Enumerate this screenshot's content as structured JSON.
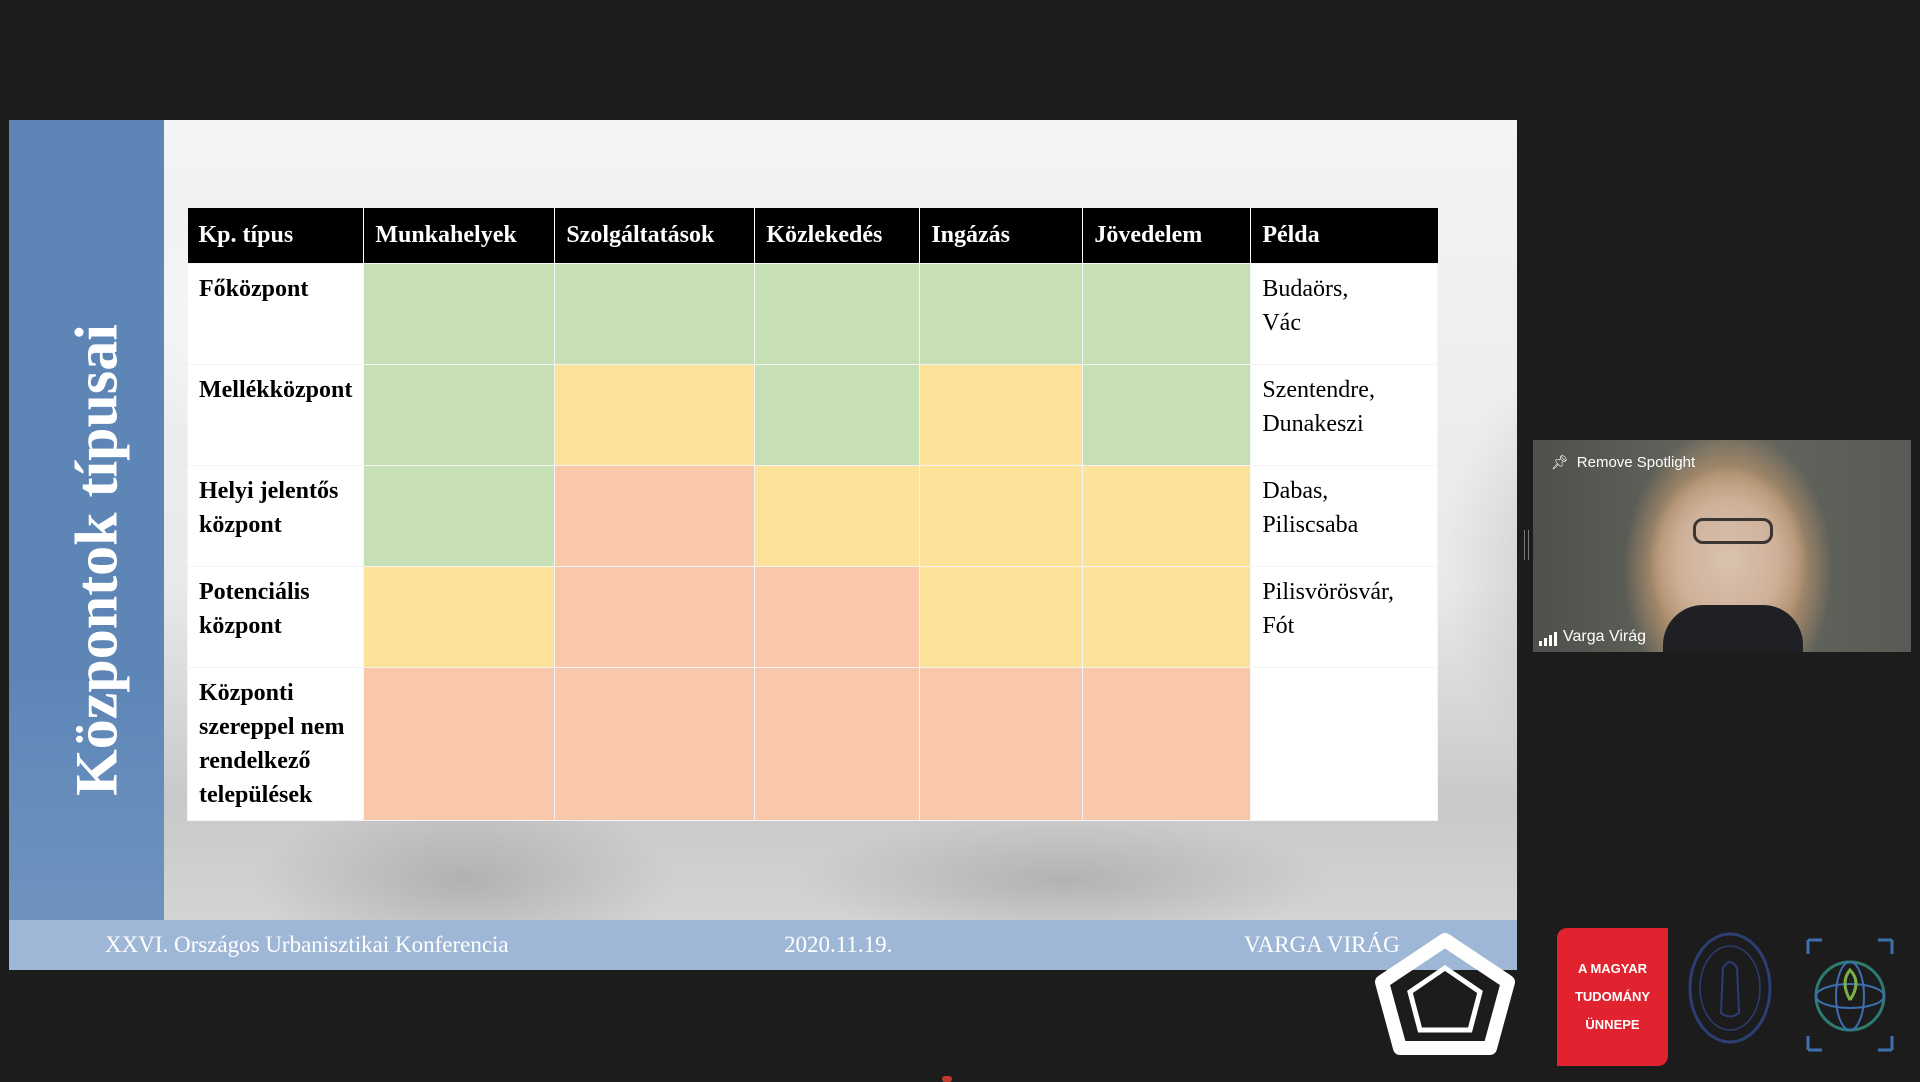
{
  "slide": {
    "title": "Központok típusai",
    "footer": {
      "conference": "XXVI. Országos Urbanisztikai Konferencia",
      "date": "2020.11.19.",
      "author": "VARGA VIRÁG"
    }
  },
  "table": {
    "headers": [
      "Kp. típus",
      "Munkahelyek",
      "Szolgáltatások",
      "Közlekedés",
      "Ingázás",
      "Jövedelem",
      "Példa"
    ],
    "rows": [
      {
        "name": [
          "Főközpont"
        ],
        "cells": [
          "green",
          "green",
          "green",
          "green",
          "green"
        ],
        "example": [
          "Budaörs,",
          "Vác"
        ]
      },
      {
        "name": [
          "Mellékközpont"
        ],
        "cells": [
          "green",
          "yellow",
          "green",
          "yellow",
          "green"
        ],
        "example": [
          "Szentendre,",
          "Dunakeszi"
        ]
      },
      {
        "name": [
          "Helyi jelentős",
          "központ"
        ],
        "cells": [
          "green",
          "orange",
          "yellow",
          "yellow",
          "yellow"
        ],
        "example": [
          "Dabas,",
          "Piliscsaba"
        ]
      },
      {
        "name": [
          "Potenciális",
          "központ"
        ],
        "cells": [
          "yellow",
          "orange",
          "orange",
          "yellow",
          "yellow"
        ],
        "example": [
          "Pilisvörösvár,",
          "Fót"
        ]
      },
      {
        "name": [
          "Központi",
          "szereppel nem",
          "rendelkező",
          "települések"
        ],
        "cells": [
          "orange",
          "orange",
          "orange",
          "orange",
          "orange"
        ],
        "example": []
      }
    ]
  },
  "colors": {
    "green": "#c6dfb4",
    "yellow": "#fde39a",
    "orange": "#f9c8aa",
    "sidebar": "#5d86b7",
    "footer": "#9fb7d6",
    "mta_red": "#e0232e"
  },
  "video": {
    "remove_spotlight_label": "Remove Spotlight",
    "participant_name": "Varga Virág",
    "icons": [
      "pin-icon",
      "signal-icon"
    ]
  },
  "logos": {
    "mta_badge_lines": [
      "A MAGYAR",
      "TUDOMÁNY",
      "ÜNNEPE"
    ],
    "icons": [
      "pentagon-logo",
      "academy-seal-logo",
      "globe-logo"
    ]
  }
}
